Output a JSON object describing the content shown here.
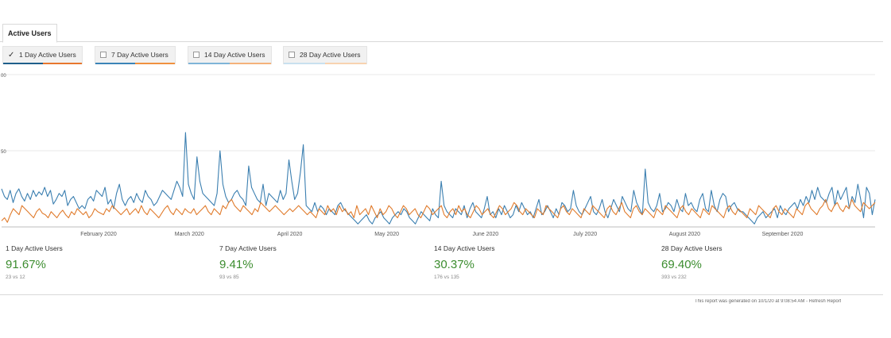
{
  "tab": {
    "label": "Active Users"
  },
  "toggles": [
    {
      "label": "1 Day Active Users",
      "checked": true,
      "colors": [
        "#1f5f8b",
        "#e8772e"
      ]
    },
    {
      "label": "7 Day Active Users",
      "checked": false,
      "colors": [
        "#3b84b7",
        "#f0913f"
      ]
    },
    {
      "label": "14 Day Active Users",
      "checked": false,
      "colors": [
        "#7fb5d8",
        "#f4b27a"
      ]
    },
    {
      "label": "28 Day Active Users",
      "checked": false,
      "colors": [
        "#c9e0ef",
        "#f8d3b0"
      ]
    }
  ],
  "chart_data": {
    "type": "line",
    "y_tick_labels": [
      "00",
      "50"
    ],
    "x_tick_labels": [
      "February 2020",
      "March 2020",
      "April 2020",
      "May 2020",
      "June 2020",
      "July 2020",
      "August 2020",
      "September 2020"
    ],
    "ylim": [
      0,
      100
    ],
    "grid": true,
    "series": [
      {
        "color": "#3b7fb0",
        "values": [
          25,
          20,
          18,
          24,
          16,
          22,
          25,
          20,
          17,
          22,
          18,
          24,
          20,
          23,
          21,
          26,
          20,
          24,
          15,
          18,
          22,
          20,
          24,
          14,
          18,
          20,
          16,
          12,
          14,
          12,
          18,
          20,
          17,
          24,
          22,
          20,
          26,
          15,
          18,
          12,
          22,
          28,
          18,
          14,
          18,
          20,
          16,
          22,
          18,
          16,
          24,
          20,
          18,
          14,
          16,
          20,
          24,
          22,
          20,
          18,
          24,
          30,
          26,
          20,
          62,
          28,
          22,
          18,
          46,
          30,
          22,
          20,
          18,
          16,
          14,
          22,
          50,
          28,
          20,
          16,
          18,
          22,
          24,
          20,
          18,
          14,
          40,
          26,
          22,
          18,
          16,
          28,
          14,
          22,
          20,
          18,
          16,
          24,
          18,
          22,
          44,
          30,
          18,
          22,
          36,
          54,
          14,
          12,
          10,
          16,
          10,
          14,
          12,
          8,
          12,
          10,
          8,
          14,
          16,
          12,
          10,
          8,
          6,
          4,
          2,
          4,
          6,
          8,
          4,
          2,
          6,
          8,
          10,
          6,
          4,
          2,
          6,
          8,
          10,
          8,
          12,
          10,
          6,
          4,
          2,
          6,
          10,
          8,
          6,
          4,
          12,
          8,
          6,
          30,
          14,
          10,
          8,
          6,
          12,
          10,
          8,
          14,
          6,
          12,
          16,
          10,
          8,
          6,
          12,
          20,
          8,
          10,
          6,
          12,
          8,
          14,
          10,
          6,
          8,
          14,
          10,
          16,
          12,
          8,
          10,
          6,
          12,
          18,
          8,
          10,
          14,
          10,
          6,
          12,
          8,
          16,
          14,
          10,
          12,
          24,
          14,
          10,
          8,
          12,
          16,
          20,
          10,
          8,
          12,
          18,
          10,
          6,
          12,
          18,
          14,
          10,
          20,
          16,
          12,
          10,
          24,
          16,
          12,
          8,
          38,
          16,
          12,
          10,
          14,
          22,
          10,
          12,
          16,
          14,
          10,
          18,
          12,
          10,
          22,
          14,
          16,
          12,
          10,
          18,
          22,
          12,
          10,
          24,
          14,
          10,
          18,
          22,
          20,
          10,
          14,
          16,
          12,
          10,
          10,
          8,
          6,
          4,
          2,
          6,
          8,
          10,
          6,
          8,
          10,
          12,
          6,
          14,
          10,
          8,
          12,
          14,
          16,
          12,
          18,
          14,
          20,
          16,
          24,
          18,
          26,
          20,
          18,
          16,
          22,
          26,
          14,
          24,
          18,
          22,
          26,
          12,
          20,
          16,
          28,
          18,
          6,
          26,
          22,
          8,
          18
        ]
      },
      {
        "color": "#e07b2c",
        "values": [
          4,
          6,
          3,
          8,
          12,
          10,
          8,
          14,
          12,
          10,
          8,
          6,
          10,
          12,
          9,
          8,
          6,
          10,
          8,
          6,
          9,
          11,
          8,
          6,
          10,
          8,
          12,
          10,
          8,
          10,
          6,
          8,
          12,
          10,
          9,
          8,
          12,
          10,
          14,
          12,
          10,
          8,
          10,
          12,
          8,
          10,
          12,
          9,
          14,
          10,
          8,
          12,
          10,
          8,
          6,
          9,
          12,
          14,
          10,
          8,
          12,
          10,
          8,
          12,
          10,
          9,
          12,
          8,
          10,
          12,
          14,
          10,
          8,
          12,
          10,
          8,
          14,
          12,
          16,
          18,
          14,
          12,
          10,
          14,
          12,
          10,
          8,
          12,
          10,
          16,
          14,
          12,
          10,
          12,
          14,
          12,
          10,
          8,
          10,
          12,
          10,
          12,
          14,
          12,
          10,
          8,
          10,
          8,
          6,
          12,
          10,
          8,
          14,
          10,
          12,
          8,
          14,
          10,
          12,
          8,
          10,
          6,
          14,
          8,
          10,
          12,
          8,
          14,
          10,
          6,
          12,
          8,
          10,
          14,
          12,
          8,
          6,
          10,
          14,
          12,
          8,
          10,
          12,
          8,
          6,
          10,
          14,
          12,
          8,
          10,
          12,
          14,
          8,
          6,
          10,
          12,
          8,
          14,
          10,
          12,
          8,
          6,
          10,
          14,
          12,
          8,
          10,
          12,
          8,
          6,
          10,
          14,
          12,
          8,
          10,
          12,
          16,
          14,
          10,
          8,
          12,
          10,
          8,
          6,
          12,
          10,
          8,
          14,
          12,
          10,
          8,
          6,
          12,
          14,
          10,
          8,
          12,
          10,
          8,
          6,
          12,
          10,
          8,
          14,
          12,
          10,
          8,
          6,
          12,
          14,
          10,
          8,
          12,
          16,
          10,
          8,
          6,
          12,
          14,
          10,
          8,
          12,
          10,
          8,
          6,
          12,
          10,
          8,
          14,
          12,
          10,
          8,
          6,
          12,
          14,
          10,
          8,
          12,
          10,
          8,
          6,
          12,
          10,
          8,
          14,
          12,
          10,
          8,
          6,
          12,
          14,
          10,
          8,
          12,
          10,
          8,
          6,
          12,
          10,
          8,
          14,
          12,
          10,
          8,
          6,
          12,
          14,
          10,
          8,
          12,
          10,
          8,
          6,
          12,
          10,
          8,
          14,
          16,
          12,
          10,
          8,
          12,
          14,
          18,
          12,
          10,
          14,
          16,
          12,
          10,
          14,
          12,
          18,
          14,
          12,
          10,
          16,
          14,
          12,
          14,
          16
        ]
      }
    ]
  },
  "metrics": [
    {
      "name": "1 Day Active Users",
      "value": "91.67%",
      "sub": "23 vs 12"
    },
    {
      "name": "7 Day Active Users",
      "value": "9.41%",
      "sub": "93 vs 85"
    },
    {
      "name": "14 Day Active Users",
      "value": "30.37%",
      "sub": "176 vs 135"
    },
    {
      "name": "28 Day Active Users",
      "value": "69.40%",
      "sub": "393 vs 232"
    }
  ],
  "footer": {
    "text": "This report was generated on 10/1/20 at 9:08:54 AM - Refresh Report"
  }
}
